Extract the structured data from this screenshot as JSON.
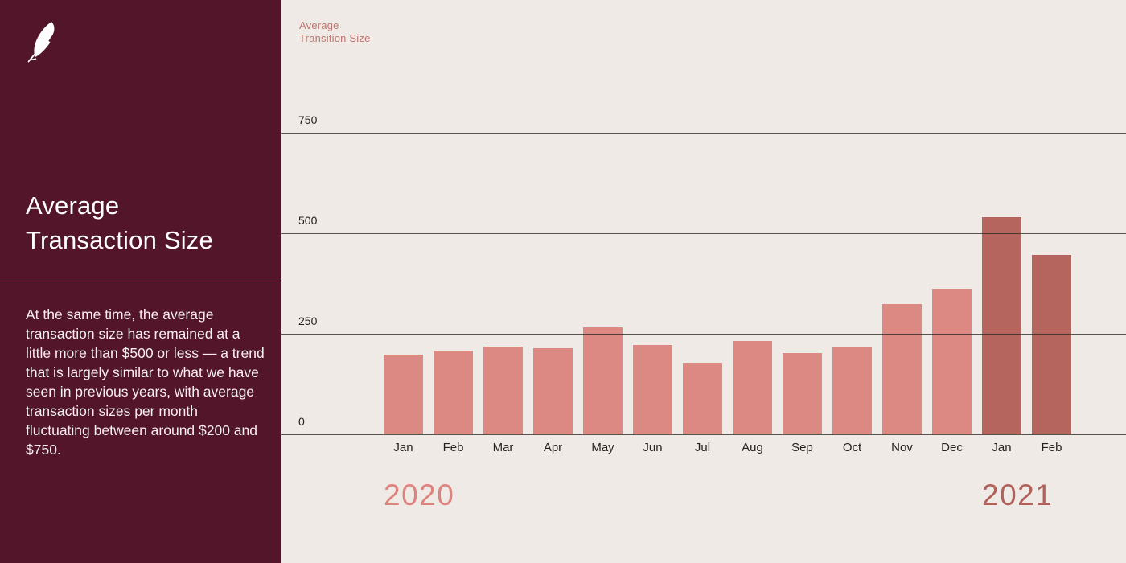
{
  "sidebar": {
    "logo_icon": "robinhood-feather",
    "title": "Average Transaction Size",
    "description": "At the same time, the average transaction size has remained at a little more than $500 or less — a trend that is largely similar to what we have seen in previous years, with average transaction sizes per month fluctuating between around $200 and $750.",
    "background_color": "#521529",
    "text_color": "#FFFFFF"
  },
  "chart_data": {
    "type": "bar",
    "title": "Average\nTransition Size",
    "title_color": "#BF7570",
    "ylim": [
      0,
      750
    ],
    "yticks": [
      0,
      250,
      500,
      750
    ],
    "grid": true,
    "legend_position": "none",
    "categories": [
      "Jan",
      "Feb",
      "Mar",
      "Apr",
      "May",
      "Jun",
      "Jul",
      "Aug",
      "Sep",
      "Oct",
      "Nov",
      "Dec",
      "Jan",
      "Feb"
    ],
    "points": [
      {
        "month": "Jan",
        "year": "2020",
        "value": 198
      },
      {
        "month": "Feb",
        "year": "2020",
        "value": 208
      },
      {
        "month": "Mar",
        "year": "2020",
        "value": 219
      },
      {
        "month": "Apr",
        "year": "2020",
        "value": 215
      },
      {
        "month": "May",
        "year": "2020",
        "value": 266
      },
      {
        "month": "Jun",
        "year": "2020",
        "value": 223
      },
      {
        "month": "Jul",
        "year": "2020",
        "value": 179
      },
      {
        "month": "Aug",
        "year": "2020",
        "value": 233
      },
      {
        "month": "Sep",
        "year": "2020",
        "value": 202
      },
      {
        "month": "Oct",
        "year": "2020",
        "value": 216
      },
      {
        "month": "Nov",
        "year": "2020",
        "value": 325
      },
      {
        "month": "Dec",
        "year": "2020",
        "value": 362
      },
      {
        "month": "Jan",
        "year": "2021",
        "value": 540
      },
      {
        "month": "Feb",
        "year": "2021",
        "value": 447
      }
    ],
    "series_colors": {
      "2020": "#DD8983",
      "2021": "#B5655D"
    },
    "year_labels": [
      {
        "text": "2020",
        "color": "#DD827D"
      },
      {
        "text": "2021",
        "color": "#B2605A"
      }
    ],
    "gridline_color": "rgba(45, 40, 34, 0.78)",
    "axis_text_color": "#262220",
    "background_color": "#EFEAE6"
  }
}
